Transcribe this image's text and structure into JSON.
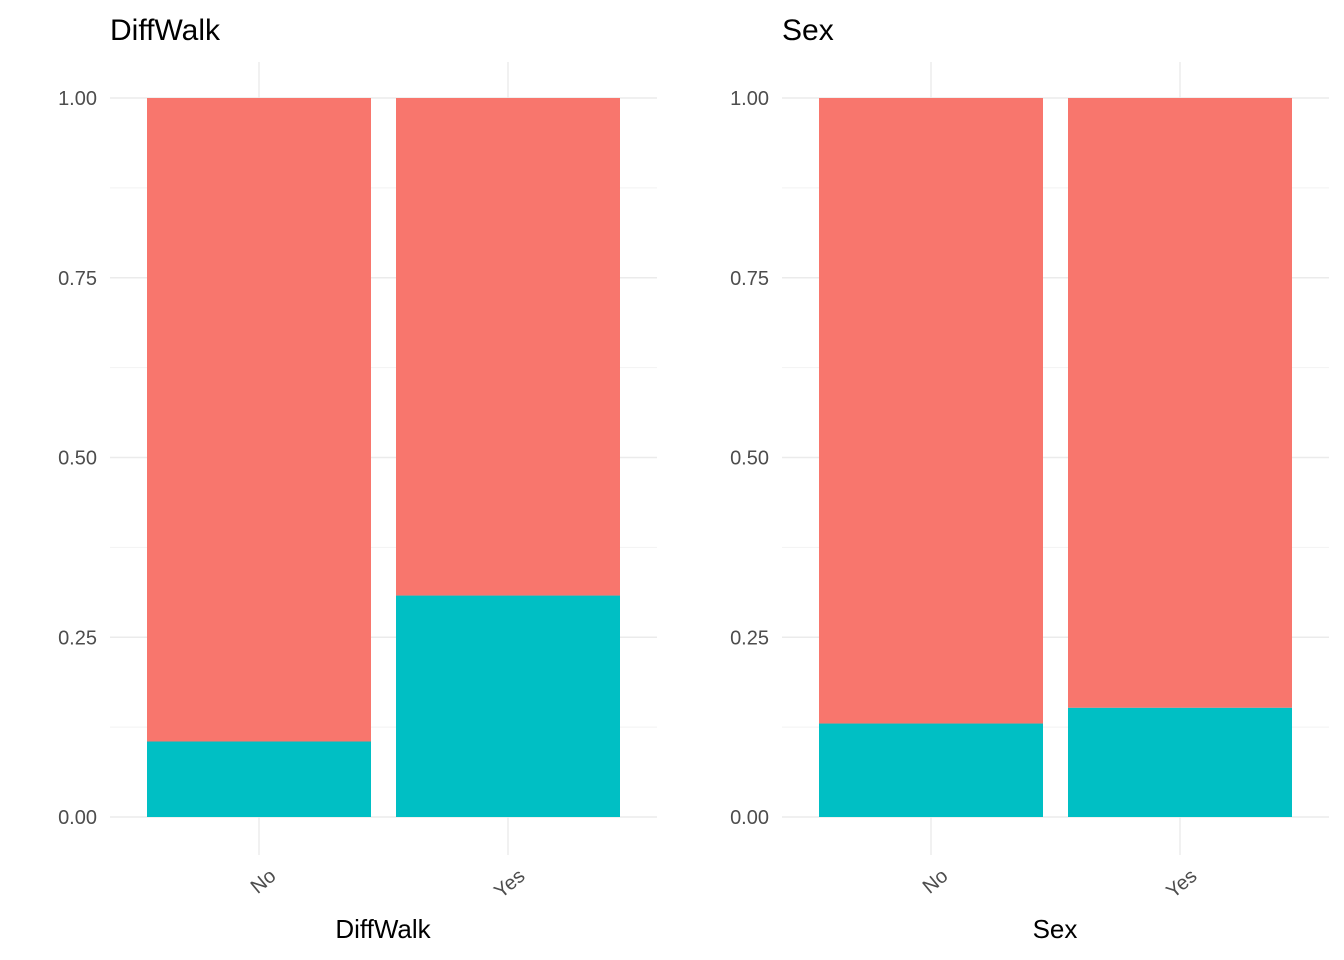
{
  "chart_data": [
    {
      "type": "bar",
      "stacked": true,
      "title": "DiffWalk",
      "xlabel": "DiffWalk",
      "ylabel": "",
      "categories": [
        "No",
        "Yes"
      ],
      "ylim": [
        0,
        1
      ],
      "yticks": [
        "0.00",
        "0.25",
        "0.50",
        "0.75",
        "1.00"
      ],
      "grid": true,
      "series": [
        {
          "color": "#00BFC4",
          "values": [
            0.105,
            0.308
          ]
        },
        {
          "color": "#F8766D",
          "values": [
            0.895,
            0.692
          ]
        }
      ]
    },
    {
      "type": "bar",
      "stacked": true,
      "title": "Sex",
      "xlabel": "Sex",
      "ylabel": "",
      "categories": [
        "No",
        "Yes"
      ],
      "ylim": [
        0,
        1
      ],
      "yticks": [
        "0.00",
        "0.25",
        "0.50",
        "0.75",
        "1.00"
      ],
      "grid": true,
      "series": [
        {
          "color": "#00BFC4",
          "values": [
            0.13,
            0.152
          ]
        },
        {
          "color": "#F8766D",
          "values": [
            0.87,
            0.848
          ]
        }
      ]
    }
  ]
}
